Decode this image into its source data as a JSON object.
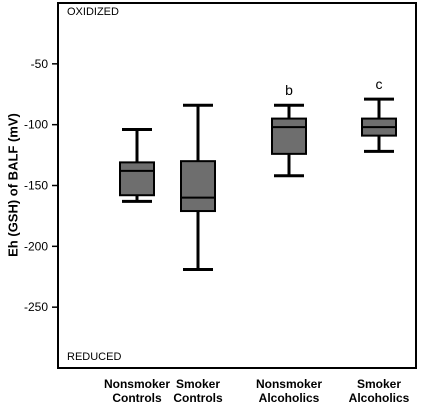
{
  "chart_data": {
    "type": "box",
    "ylabel": "Eh (GSH) of BALF (mV)",
    "ylim": [
      -300,
      0
    ],
    "yticks": [
      -250,
      -200,
      -150,
      -100,
      -50
    ],
    "top_label": "OXIDIZED",
    "bottom_label": "REDUCED",
    "categories": [
      [
        "Nonsmoker",
        "Controls"
      ],
      [
        "Smoker",
        "Controls"
      ],
      [
        "Nonsmoker",
        "Alcoholics"
      ],
      [
        "Smoker",
        "Alcoholics"
      ]
    ],
    "boxes": [
      {
        "min": -163,
        "q1": -158,
        "median": -138,
        "q3": -131,
        "max": -104,
        "annotation": ""
      },
      {
        "min": -219,
        "q1": -171,
        "median": -160,
        "q3": -130,
        "max": -84,
        "annotation": ""
      },
      {
        "min": -142,
        "q1": -124,
        "median": -102,
        "q3": -95,
        "max": -84,
        "annotation": "b"
      },
      {
        "min": -122,
        "q1": -109,
        "median": -102,
        "q3": -95,
        "max": -79,
        "annotation": "c"
      }
    ],
    "box_color": "#6e6e6e"
  }
}
